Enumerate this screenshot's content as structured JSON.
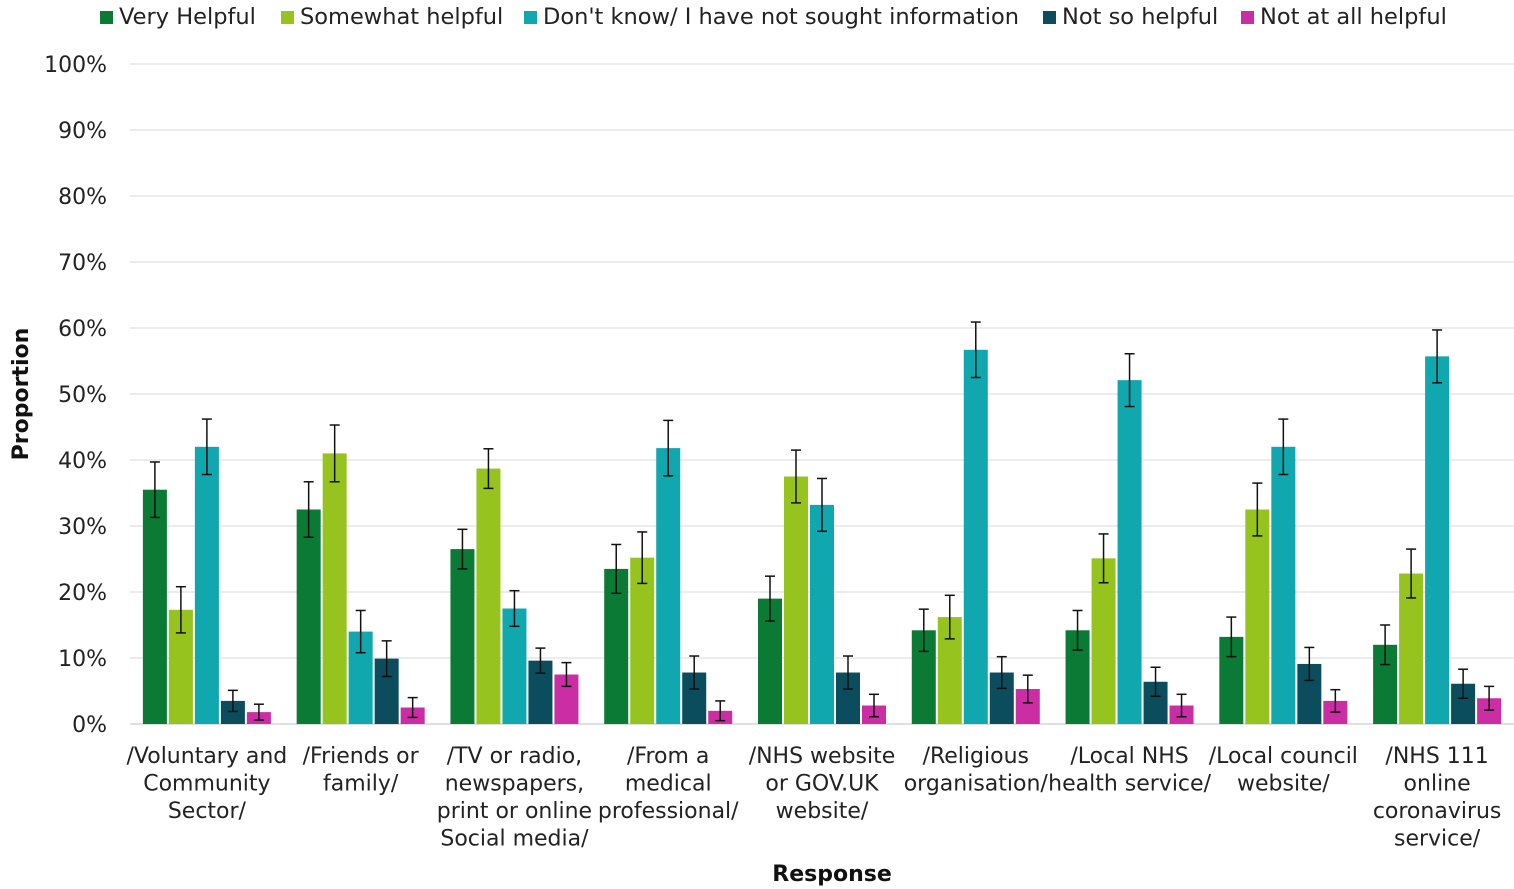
{
  "chart_data": {
    "type": "bar",
    "xlabel": "Response",
    "ylabel": "Proportion",
    "ylim": [
      0,
      100
    ],
    "y_ticks": [
      "0%",
      "10%",
      "20%",
      "30%",
      "40%",
      "50%",
      "60%",
      "70%",
      "80%",
      "90%",
      "100%"
    ],
    "grid": true,
    "legend_position": "top",
    "categories": [
      [
        "/Voluntary and",
        "Community",
        "Sector/"
      ],
      [
        "/Friends or",
        "family/"
      ],
      [
        "/TV or radio,",
        "newspapers,",
        "print or online",
        "Social media/"
      ],
      [
        "/From a",
        "medical",
        "professional/"
      ],
      [
        "/NHS website",
        "or GOV.UK",
        "website/"
      ],
      [
        "/Religious",
        "organisation/"
      ],
      [
        "/Local NHS",
        "health service/"
      ],
      [
        "/Local council",
        "website/"
      ],
      [
        "/NHS 111",
        "online",
        "coronavirus",
        "service/"
      ]
    ],
    "series": [
      {
        "name": "Very Helpful",
        "color": "#0a7a34",
        "values": [
          35.5,
          32.5,
          26.5,
          23.5,
          19.0,
          14.2,
          14.2,
          13.2,
          12.0
        ],
        "error": [
          4.2,
          4.2,
          3.0,
          3.7,
          3.4,
          3.2,
          3.0,
          3.0,
          3.0
        ]
      },
      {
        "name": "Somewhat helpful",
        "color": "#97c31e",
        "values": [
          17.3,
          41.0,
          38.7,
          25.2,
          37.5,
          16.2,
          25.1,
          32.5,
          22.8
        ],
        "error": [
          3.5,
          4.3,
          3.0,
          3.9,
          4.0,
          3.3,
          3.7,
          4.0,
          3.7
        ]
      },
      {
        "name": "Don't know/ I have not sought information",
        "color": "#11a7ae",
        "values": [
          42.0,
          14.0,
          17.5,
          41.8,
          33.2,
          56.7,
          52.1,
          42.0,
          55.7
        ],
        "error": [
          4.2,
          3.2,
          2.7,
          4.2,
          4.0,
          4.2,
          4.0,
          4.2,
          4.0
        ]
      },
      {
        "name": "Not so helpful",
        "color": "#0b4d5c",
        "values": [
          3.5,
          9.9,
          9.6,
          7.8,
          7.8,
          7.8,
          6.4,
          9.1,
          6.1
        ],
        "error": [
          1.6,
          2.7,
          1.9,
          2.5,
          2.5,
          2.4,
          2.2,
          2.5,
          2.2
        ]
      },
      {
        "name": "Not at all helpful",
        "color": "#cb2da4",
        "values": [
          1.8,
          2.5,
          7.5,
          2.0,
          2.8,
          5.3,
          2.8,
          3.5,
          3.9
        ],
        "error": [
          1.2,
          1.5,
          1.8,
          1.5,
          1.7,
          2.1,
          1.7,
          1.7,
          1.8
        ]
      }
    ]
  }
}
